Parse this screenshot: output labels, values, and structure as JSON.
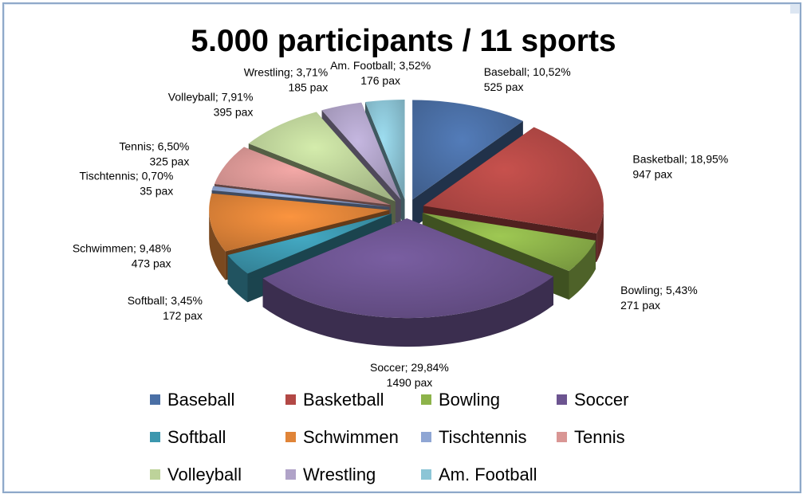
{
  "chart_data": {
    "type": "pie",
    "title": "5.000 participants / 11 sports",
    "slices": [
      {
        "name": "Baseball",
        "percent_label": "10,52%",
        "pax": 525,
        "value": 10.52,
        "color": "#4a6fa5"
      },
      {
        "name": "Basketball",
        "percent_label": "18,95%",
        "pax": 947,
        "value": 18.95,
        "color": "#b24845"
      },
      {
        "name": "Bowling",
        "percent_label": "5,43%",
        "pax": 271,
        "value": 5.43,
        "color": "#8db34a"
      },
      {
        "name": "Soccer",
        "percent_label": "29,84%",
        "pax": 1490,
        "value": 29.84,
        "color": "#6c5490"
      },
      {
        "name": "Softball",
        "percent_label": "3,45%",
        "pax": 172,
        "value": 3.45,
        "color": "#3c97ae"
      },
      {
        "name": "Schwimmen",
        "percent_label": "9,48%",
        "pax": 473,
        "value": 9.48,
        "color": "#e08438"
      },
      {
        "name": "Tischtennis",
        "percent_label": "0,70%",
        "pax": 35,
        "value": 0.7,
        "color": "#8fa6d4"
      },
      {
        "name": "Tennis",
        "percent_label": "6,50%",
        "pax": 325,
        "value": 6.5,
        "color": "#d99694"
      },
      {
        "name": "Volleyball",
        "percent_label": "7,91%",
        "pax": 395,
        "value": 7.91,
        "color": "#bdd39a"
      },
      {
        "name": "Wrestling",
        "percent_label": "3,71%",
        "pax": 185,
        "value": 3.71,
        "color": "#b0a3c8"
      },
      {
        "name": "Am. Football",
        "percent_label": "3,52%",
        "pax": 176,
        "value": 3.52,
        "color": "#8cc5d6"
      }
    ],
    "pax_suffix": "pax",
    "legend_placement": "bottom",
    "style": "3d-exploded"
  }
}
